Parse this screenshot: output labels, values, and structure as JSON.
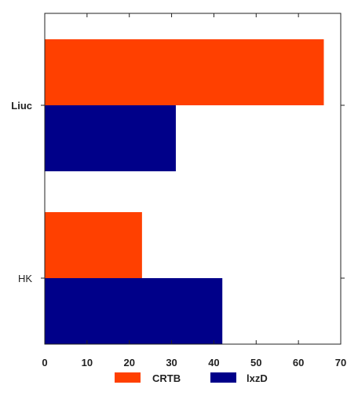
{
  "chart_data": {
    "type": "bar",
    "orientation": "horizontal",
    "title": "",
    "xlabel": "",
    "ylabel": "",
    "categories": [
      "Liuc",
      "HK"
    ],
    "series": [
      {
        "name": "CRTB",
        "color": "#ff4000",
        "values": [
          66,
          23
        ]
      },
      {
        "name": "lxzD",
        "color": "#000089",
        "values": [
          31,
          42
        ]
      }
    ],
    "xlim": [
      0,
      70
    ],
    "xticks": [
      "0",
      "10",
      "20",
      "30",
      "40",
      "50",
      "60",
      "70"
    ],
    "grid": false,
    "legend_position": "bottom"
  }
}
